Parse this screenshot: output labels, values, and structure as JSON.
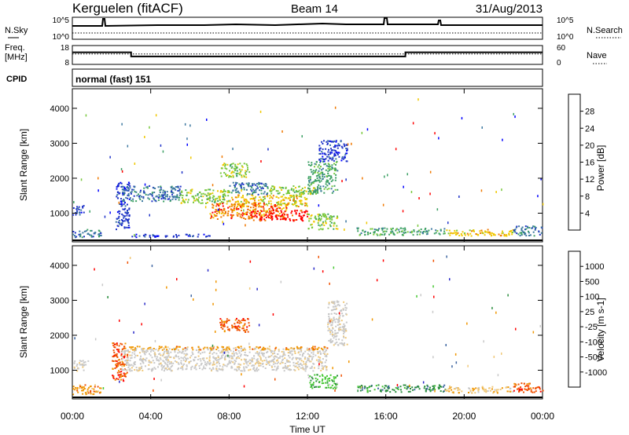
{
  "header": {
    "station": "Kerguelen (fitACF)",
    "beam": "Beam 14",
    "date": "31/Aug/2013"
  },
  "sky_panel": {
    "left_label": "N.Sky",
    "right_label": "N.Search",
    "left_ticks": [
      "10^5",
      "10^0"
    ],
    "right_ticks": [
      "10^5",
      "10^0"
    ]
  },
  "freq_panel": {
    "left_label_1": "Freq.",
    "left_label_2": "[MHz]",
    "right_label": "Nave",
    "left_ticks": [
      "18",
      "8"
    ],
    "right_ticks": [
      "60",
      "0"
    ],
    "freq_mhz_steps": [
      {
        "from": 0,
        "to": 3,
        "value": 14.4
      },
      {
        "from": 3,
        "to": 17,
        "value": 12.2
      },
      {
        "from": 17,
        "to": 24,
        "value": 14.4
      }
    ],
    "nave_level": 33
  },
  "cpid": {
    "label": "CPID",
    "value": "normal (fast) 151"
  },
  "chart_data": [
    {
      "type": "heatmap",
      "name": "power",
      "xlabel": "Time UT",
      "ylabel": "Slant Range [km]",
      "xlim": [
        0,
        24
      ],
      "ylim": [
        180,
        4560
      ],
      "x_ticks": [
        "00:00",
        "04:00",
        "08:00",
        "12:00",
        "16:00",
        "20:00",
        "00:00"
      ],
      "y_ticks": [
        1000,
        2000,
        3000,
        4000
      ],
      "colorbar_label": "Power [dB]",
      "colorbar_ticks": [
        "28",
        "24",
        "20",
        "16",
        "12",
        "8",
        "4"
      ],
      "colorbar_colors": [
        "#0000ff",
        "#1e32c8",
        "#3c78a0",
        "#3ca064",
        "#78c83c",
        "#f0c800",
        "#f07800",
        "#ff0000"
      ],
      "patches": [
        {
          "t": [
            0.0,
            0.6
          ],
          "r": [
            950,
            1250
          ],
          "c": 1
        },
        {
          "t": [
            0.0,
            1.5
          ],
          "r": [
            330,
            550
          ],
          "c": 2
        },
        {
          "t": [
            2.2,
            2.9
          ],
          "r": [
            550,
            1900
          ],
          "c": 1
        },
        {
          "t": [
            2.5,
            5.5
          ],
          "r": [
            1350,
            1800
          ],
          "c": 2
        },
        {
          "t": [
            5.5,
            8.0
          ],
          "r": [
            1300,
            1700
          ],
          "c": 4
        },
        {
          "t": [
            8.0,
            12.0
          ],
          "r": [
            1200,
            1550
          ],
          "c": 5
        },
        {
          "t": [
            8.0,
            10.0
          ],
          "r": [
            1550,
            1900
          ],
          "c": 2
        },
        {
          "t": [
            10.0,
            12.5
          ],
          "r": [
            1550,
            1800
          ],
          "c": 4
        },
        {
          "t": [
            7.0,
            11.0
          ],
          "r": [
            850,
            1300
          ],
          "c": 6
        },
        {
          "t": [
            9.0,
            12.0
          ],
          "r": [
            800,
            1100
          ],
          "c": 7
        },
        {
          "t": [
            7.5,
            9.0
          ],
          "r": [
            2050,
            2450
          ],
          "c": 4
        },
        {
          "t": [
            12.0,
            13.5
          ],
          "r": [
            1600,
            2500
          ],
          "c": 3
        },
        {
          "t": [
            12.5,
            14.0
          ],
          "r": [
            2500,
            3100
          ],
          "c": 1
        },
        {
          "t": [
            12.0,
            13.5
          ],
          "r": [
            550,
            1000
          ],
          "c": 4
        },
        {
          "t": [
            3.0,
            7.0
          ],
          "r": [
            330,
            420
          ],
          "c": 1
        },
        {
          "t": [
            14.5,
            19.0
          ],
          "r": [
            390,
            600
          ],
          "c": 3
        },
        {
          "t": [
            19.0,
            22.5
          ],
          "r": [
            370,
            560
          ],
          "c": 5
        },
        {
          "t": [
            22.5,
            24.0
          ],
          "r": [
            370,
            650
          ],
          "c": 2
        }
      ]
    },
    {
      "type": "heatmap",
      "name": "velocity",
      "xlabel": "Time UT",
      "ylabel": "Slant Range [km]",
      "xlim": [
        0,
        24
      ],
      "ylim": [
        180,
        4560
      ],
      "x_ticks": [
        "00:00",
        "04:00",
        "08:00",
        "12:00",
        "16:00",
        "20:00",
        "00:00"
      ],
      "y_ticks": [
        1000,
        2000,
        3000,
        4000
      ],
      "colorbar_label": "Velocity [m s-1]",
      "colorbar_ticks": [
        "1000",
        "500",
        "100",
        "25",
        "-25",
        "-100",
        "-500",
        "-1000"
      ],
      "colorbar_colors": [
        "#ff0000",
        "#f05000",
        "#f09600",
        "#f0c878",
        "#c8c8c8",
        "#c8c8c8",
        "#46c832",
        "#288c3c",
        "#3c64a0",
        "#2828c8"
      ],
      "patches": [
        {
          "t": [
            0.0,
            1.5
          ],
          "r": [
            330,
            620
          ],
          "c": 2
        },
        {
          "t": [
            0.0,
            0.8
          ],
          "r": [
            1000,
            1300
          ],
          "c": 4
        },
        {
          "t": [
            2.0,
            2.8
          ],
          "r": [
            700,
            1800
          ],
          "c": 1
        },
        {
          "t": [
            2.5,
            13.0
          ],
          "r": [
            1000,
            1650
          ],
          "c": 4
        },
        {
          "t": [
            2.5,
            13.0
          ],
          "r": [
            1600,
            1700
          ],
          "c": 2
        },
        {
          "t": [
            7.5,
            9.0
          ],
          "r": [
            2100,
            2500
          ],
          "c": 1
        },
        {
          "t": [
            12.0,
            13.5
          ],
          "r": [
            500,
            900
          ],
          "c": 6
        },
        {
          "t": [
            13.0,
            14.0
          ],
          "r": [
            1700,
            3000
          ],
          "c": 4
        },
        {
          "t": [
            14.5,
            19.0
          ],
          "r": [
            390,
            600
          ],
          "c": 7
        },
        {
          "t": [
            19.0,
            22.5
          ],
          "r": [
            370,
            560
          ],
          "c": 3
        },
        {
          "t": [
            22.5,
            24.0
          ],
          "r": [
            370,
            650
          ],
          "c": 1
        }
      ]
    }
  ]
}
